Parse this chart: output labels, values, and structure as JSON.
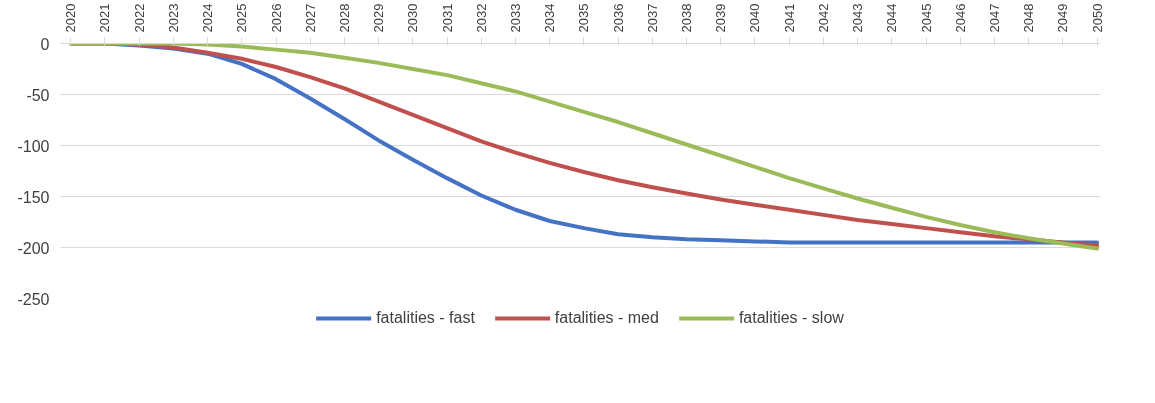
{
  "chart_data": {
    "type": "line",
    "categories": [
      "2020",
      "2021",
      "2022",
      "2023",
      "2024",
      "2025",
      "2026",
      "2027",
      "2028",
      "2029",
      "2030",
      "2031",
      "2032",
      "2033",
      "2034",
      "2035",
      "2036",
      "2037",
      "2038",
      "2039",
      "2040",
      "2041",
      "2042",
      "2043",
      "2044",
      "2045",
      "2046",
      "2047",
      "2048",
      "2049",
      "2050"
    ],
    "series": [
      {
        "name": "fatalities - fast",
        "color": "#4472c4",
        "values": [
          0,
          0,
          -2,
          -5,
          -10,
          -20,
          -35,
          -54,
          -74,
          -95,
          -114,
          -132,
          -149,
          -163,
          -174,
          -181,
          -187,
          -190,
          -192,
          -193,
          -194,
          -195,
          -195,
          -195,
          -195,
          -195,
          -195,
          -195,
          -195,
          -195,
          -195
        ]
      },
      {
        "name": "fatalities - med",
        "color": "#c0504d",
        "values": [
          0,
          0,
          -1,
          -4,
          -9,
          -15,
          -23,
          -33,
          -44,
          -57,
          -70,
          -83,
          -96,
          -107,
          -117,
          -126,
          -134,
          -141,
          -147,
          -153,
          -158,
          -163,
          -168,
          -173,
          -177,
          -181,
          -185,
          -189,
          -192,
          -195,
          -198
        ]
      },
      {
        "name": "fatalities - slow",
        "color": "#9bbb59",
        "values": [
          0,
          0,
          0,
          0,
          -1,
          -3,
          -6,
          -9,
          -14,
          -19,
          -25,
          -31,
          -39,
          -47,
          -57,
          -67,
          -77,
          -88,
          -99,
          -110,
          -121,
          -132,
          -142,
          -152,
          -161,
          -170,
          -178,
          -185,
          -191,
          -196,
          -201
        ]
      }
    ],
    "ylim": [
      -250,
      0
    ],
    "yticks": [
      0,
      -50,
      -100,
      -150,
      -200,
      -250
    ],
    "grid": "y",
    "legend": "bottom",
    "marker": "none",
    "line_style": "solid"
  }
}
